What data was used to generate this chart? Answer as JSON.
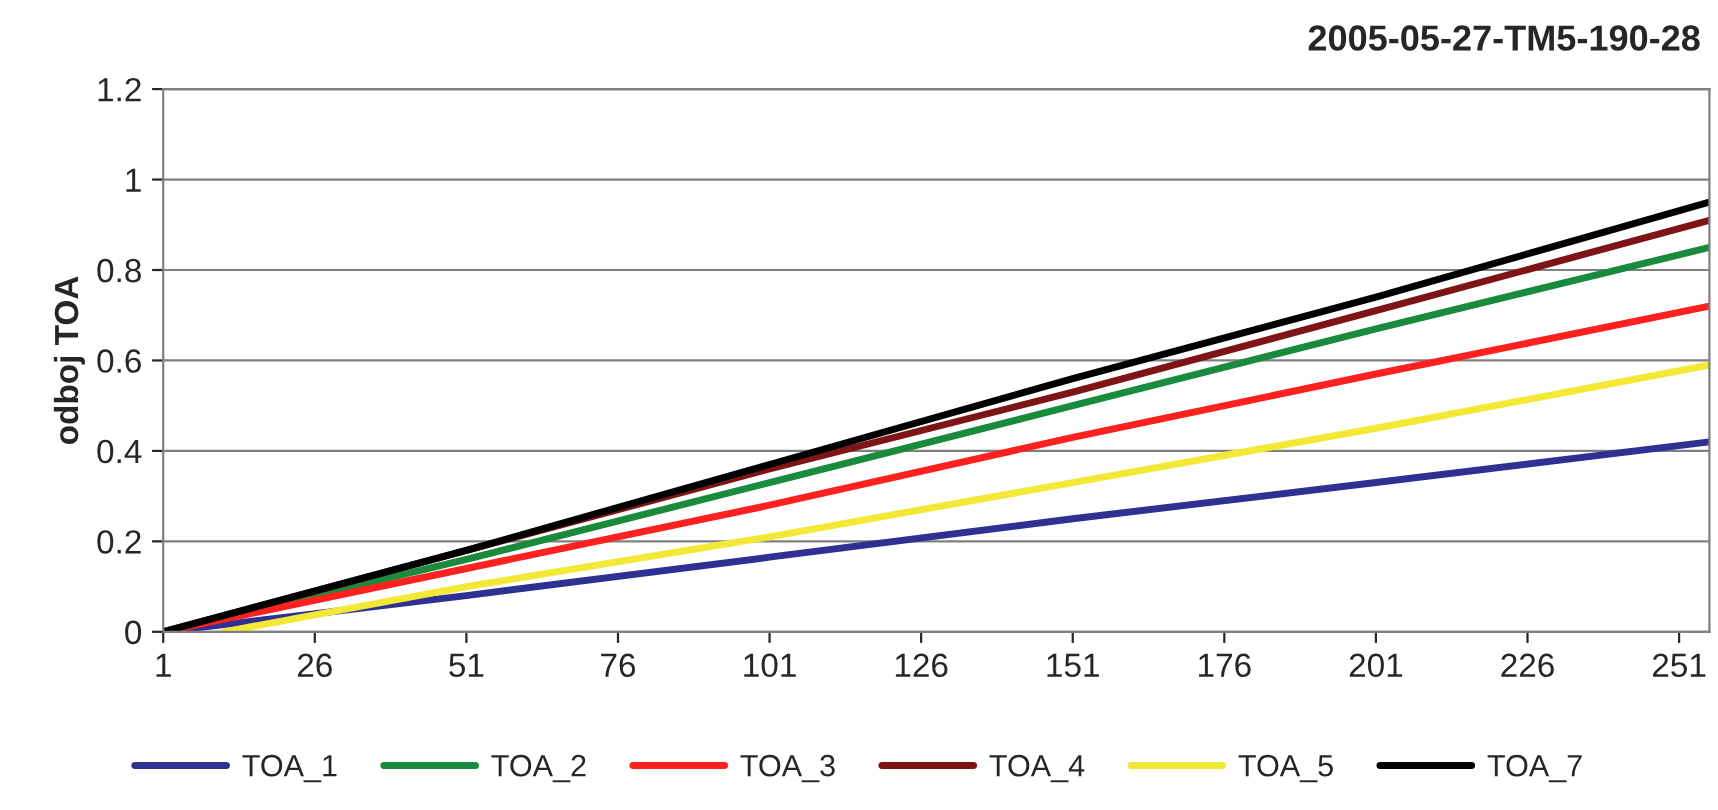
{
  "chart_data": {
    "type": "line",
    "title": "2005-05-27-TM5-190-28",
    "ylabel": "odboj TOA",
    "x": [
      1,
      51,
      101,
      151,
      201,
      256
    ],
    "series": [
      {
        "name": "TOA_1",
        "color": "#2e3192",
        "values": [
          0,
          0.08,
          0.165,
          0.25,
          0.33,
          0.42
        ]
      },
      {
        "name": "TOA_2",
        "color": "#1a8a3c",
        "values": [
          0,
          0.16,
          0.33,
          0.5,
          0.67,
          0.85
        ]
      },
      {
        "name": "TOA_3",
        "color": "#ff2020",
        "values": [
          0,
          0.14,
          0.28,
          0.43,
          0.57,
          0.72
        ]
      },
      {
        "name": "TOA_4",
        "color": "#7f1416",
        "values": [
          0,
          0.18,
          0.36,
          0.53,
          0.71,
          0.91
        ]
      },
      {
        "name": "TOA_5",
        "color": "#f2e836",
        "x": [
          11,
          51,
          101,
          151,
          201,
          256
        ],
        "values": [
          0,
          0.1,
          0.21,
          0.33,
          0.45,
          0.59
        ]
      },
      {
        "name": "TOA_7",
        "color": "#000000",
        "values": [
          0,
          0.18,
          0.37,
          0.56,
          0.74,
          0.95
        ]
      }
    ],
    "xlim": [
      1,
      256
    ],
    "xticks": [
      1,
      26,
      51,
      76,
      101,
      126,
      151,
      176,
      201,
      226,
      251
    ],
    "ylim": [
      0,
      1.2
    ],
    "yticks": [
      0,
      {
        "value": 0.2,
        "label": "0.2"
      },
      {
        "value": 0.4,
        "label": "0.4"
      },
      {
        "value": 0.6,
        "label": "0.6"
      },
      {
        "value": 0.8,
        "label": "0.8"
      },
      1,
      {
        "value": 1.2,
        "label": "1.2"
      }
    ],
    "grid": "y",
    "legend": "bottom",
    "marker": "none",
    "line_style": "solid"
  }
}
